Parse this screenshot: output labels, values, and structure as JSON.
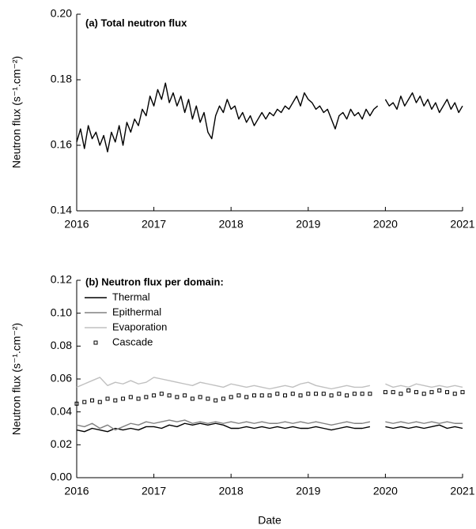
{
  "chart_data": [
    {
      "type": "line",
      "title": "(a) Total neutron flux",
      "y_label": "Neutron flux (s⁻¹.cm⁻²)",
      "color": "#000000",
      "xlim": [
        2016,
        2021
      ],
      "xticks": [
        2016,
        2017,
        2018,
        2019,
        2020,
        2021
      ],
      "ylim": [
        0.14,
        0.2
      ],
      "yticks": [
        0.14,
        0.16,
        0.18,
        {
          "value": 0.2,
          "label": "0.20"
        }
      ],
      "x": [
        2016.0,
        2016.05,
        2016.1,
        2016.15,
        2016.2,
        2016.25,
        2016.3,
        2016.35,
        2016.4,
        2016.45,
        2016.5,
        2016.55,
        2016.6,
        2016.65,
        2016.7,
        2016.75,
        2016.8,
        2016.85,
        2016.9,
        2016.95,
        2017.0,
        2017.05,
        2017.1,
        2017.15,
        2017.2,
        2017.25,
        2017.3,
        2017.35,
        2017.4,
        2017.45,
        2017.5,
        2017.55,
        2017.6,
        2017.65,
        2017.7,
        2017.75,
        2017.8,
        2017.85,
        2017.9,
        2017.95,
        2018.0,
        2018.05,
        2018.1,
        2018.15,
        2018.2,
        2018.25,
        2018.3,
        2018.35,
        2018.4,
        2018.45,
        2018.5,
        2018.55,
        2018.6,
        2018.65,
        2018.7,
        2018.75,
        2018.8,
        2018.85,
        2018.9,
        2018.95,
        2019.0,
        2019.05,
        2019.1,
        2019.15,
        2019.2,
        2019.25,
        2019.3,
        2019.35,
        2019.4,
        2019.45,
        2019.5,
        2019.55,
        2019.6,
        2019.65,
        2019.7,
        2019.75,
        2019.8,
        2019.85,
        2019.9,
        2019.95,
        2020.0,
        2020.05,
        2020.1,
        2020.15,
        2020.2,
        2020.25,
        2020.3,
        2020.35,
        2020.4,
        2020.45,
        2020.5,
        2020.55,
        2020.6,
        2020.65,
        2020.7,
        2020.75,
        2020.8,
        2020.85,
        2020.9,
        2020.95,
        2021.0
      ],
      "values": [
        0.161,
        0.165,
        0.159,
        0.166,
        0.162,
        0.164,
        0.16,
        0.163,
        0.158,
        0.164,
        0.161,
        0.166,
        0.16,
        0.167,
        0.164,
        0.168,
        0.166,
        0.171,
        0.169,
        0.175,
        0.172,
        0.177,
        0.174,
        0.179,
        0.173,
        0.176,
        0.172,
        0.175,
        0.17,
        0.174,
        0.168,
        0.172,
        0.167,
        0.17,
        0.164,
        0.162,
        0.169,
        0.172,
        0.17,
        0.174,
        0.171,
        0.172,
        0.168,
        0.17,
        0.167,
        0.169,
        0.166,
        0.168,
        0.17,
        0.168,
        0.17,
        0.169,
        0.171,
        0.17,
        0.172,
        0.171,
        0.173,
        0.175,
        0.172,
        0.176,
        0.174,
        0.173,
        0.171,
        0.172,
        0.17,
        0.171,
        0.168,
        0.165,
        0.169,
        0.17,
        0.168,
        0.171,
        0.169,
        0.17,
        0.168,
        0.171,
        0.169,
        0.171,
        0.172,
        null,
        0.174,
        0.172,
        0.173,
        0.171,
        0.175,
        0.172,
        0.174,
        0.176,
        0.173,
        0.175,
        0.172,
        0.174,
        0.171,
        0.173,
        0.17,
        0.172,
        0.174,
        0.171,
        0.173,
        0.17,
        0.172
      ]
    },
    {
      "type": "line",
      "title": "(b) Neutron flux per domain:",
      "y_label": "Neutron flux (s⁻¹.cm⁻²)",
      "x_label": "Date",
      "xlim": [
        2016,
        2021
      ],
      "xticks": [
        2016,
        2017,
        2018,
        2019,
        2020,
        2021
      ],
      "ylim": [
        0,
        0.12
      ],
      "yticks": [
        {
          "value": 0,
          "label": "0.00"
        },
        0.02,
        0.04,
        0.06,
        0.08,
        {
          "value": 0.1,
          "label": "0.10"
        },
        0.12
      ],
      "x": [
        2016.0,
        2016.1,
        2016.2,
        2016.3,
        2016.4,
        2016.5,
        2016.6,
        2016.7,
        2016.8,
        2016.9,
        2017.0,
        2017.1,
        2017.2,
        2017.3,
        2017.4,
        2017.5,
        2017.6,
        2017.7,
        2017.8,
        2017.9,
        2018.0,
        2018.1,
        2018.2,
        2018.3,
        2018.4,
        2018.5,
        2018.6,
        2018.7,
        2018.8,
        2018.9,
        2019.0,
        2019.1,
        2019.2,
        2019.3,
        2019.4,
        2019.5,
        2019.6,
        2019.7,
        2019.8,
        2019.9,
        2020.0,
        2020.1,
        2020.2,
        2020.3,
        2020.4,
        2020.5,
        2020.6,
        2020.7,
        2020.8,
        2020.9,
        2021.0
      ],
      "series": [
        {
          "name": "Thermal",
          "color": "#000000",
          "style": "line",
          "values": [
            0.029,
            0.028,
            0.03,
            0.029,
            0.028,
            0.03,
            0.029,
            0.03,
            0.029,
            0.031,
            0.031,
            0.03,
            0.032,
            0.031,
            0.033,
            0.032,
            0.033,
            0.032,
            0.033,
            0.032,
            0.03,
            0.03,
            0.031,
            0.03,
            0.031,
            0.03,
            0.031,
            0.03,
            0.031,
            0.03,
            0.03,
            0.031,
            0.03,
            0.029,
            0.03,
            0.031,
            0.03,
            0.03,
            0.031,
            null,
            0.031,
            0.03,
            0.031,
            0.03,
            0.031,
            0.03,
            0.031,
            0.032,
            0.03,
            0.031,
            0.03
          ]
        },
        {
          "name": "Epithermal",
          "color": "#808080",
          "style": "line",
          "values": [
            0.032,
            0.031,
            0.033,
            0.03,
            0.032,
            0.029,
            0.031,
            0.033,
            0.032,
            0.034,
            0.033,
            0.034,
            0.035,
            0.034,
            0.035,
            0.033,
            0.034,
            0.033,
            0.034,
            0.033,
            0.034,
            0.033,
            0.034,
            0.033,
            0.034,
            0.033,
            0.033,
            0.034,
            0.033,
            0.034,
            0.033,
            0.034,
            0.033,
            0.032,
            0.033,
            0.034,
            0.033,
            0.033,
            0.034,
            null,
            0.034,
            0.033,
            0.034,
            0.033,
            0.034,
            0.033,
            0.034,
            0.033,
            0.034,
            0.033,
            0.033
          ]
        },
        {
          "name": "Evaporation",
          "color": "#c0c0c0",
          "style": "line",
          "values": [
            0.055,
            0.057,
            0.059,
            0.061,
            0.056,
            0.058,
            0.057,
            0.059,
            0.057,
            0.058,
            0.061,
            0.06,
            0.059,
            0.058,
            0.057,
            0.056,
            0.058,
            0.057,
            0.056,
            0.055,
            0.057,
            0.056,
            0.055,
            0.056,
            0.055,
            0.054,
            0.055,
            0.056,
            0.055,
            0.057,
            0.058,
            0.056,
            0.055,
            0.054,
            0.055,
            0.056,
            0.055,
            0.055,
            0.056,
            null,
            0.057,
            0.055,
            0.056,
            0.055,
            0.057,
            0.056,
            0.055,
            0.056,
            0.055,
            0.056,
            0.055
          ]
        },
        {
          "name": "Cascade",
          "color": "#000000",
          "style": "markers",
          "values": [
            0.045,
            0.046,
            0.047,
            0.046,
            0.048,
            0.047,
            0.048,
            0.049,
            0.048,
            0.049,
            0.05,
            0.051,
            0.05,
            0.049,
            0.05,
            0.048,
            0.049,
            0.048,
            0.047,
            0.048,
            0.049,
            0.05,
            0.049,
            0.05,
            0.05,
            0.05,
            0.051,
            0.05,
            0.051,
            0.05,
            0.051,
            0.051,
            0.051,
            0.05,
            0.051,
            0.05,
            0.051,
            0.051,
            0.051,
            null,
            0.052,
            0.052,
            0.051,
            0.053,
            0.052,
            0.051,
            0.052,
            0.053,
            0.052,
            0.051,
            0.052
          ]
        }
      ]
    }
  ]
}
